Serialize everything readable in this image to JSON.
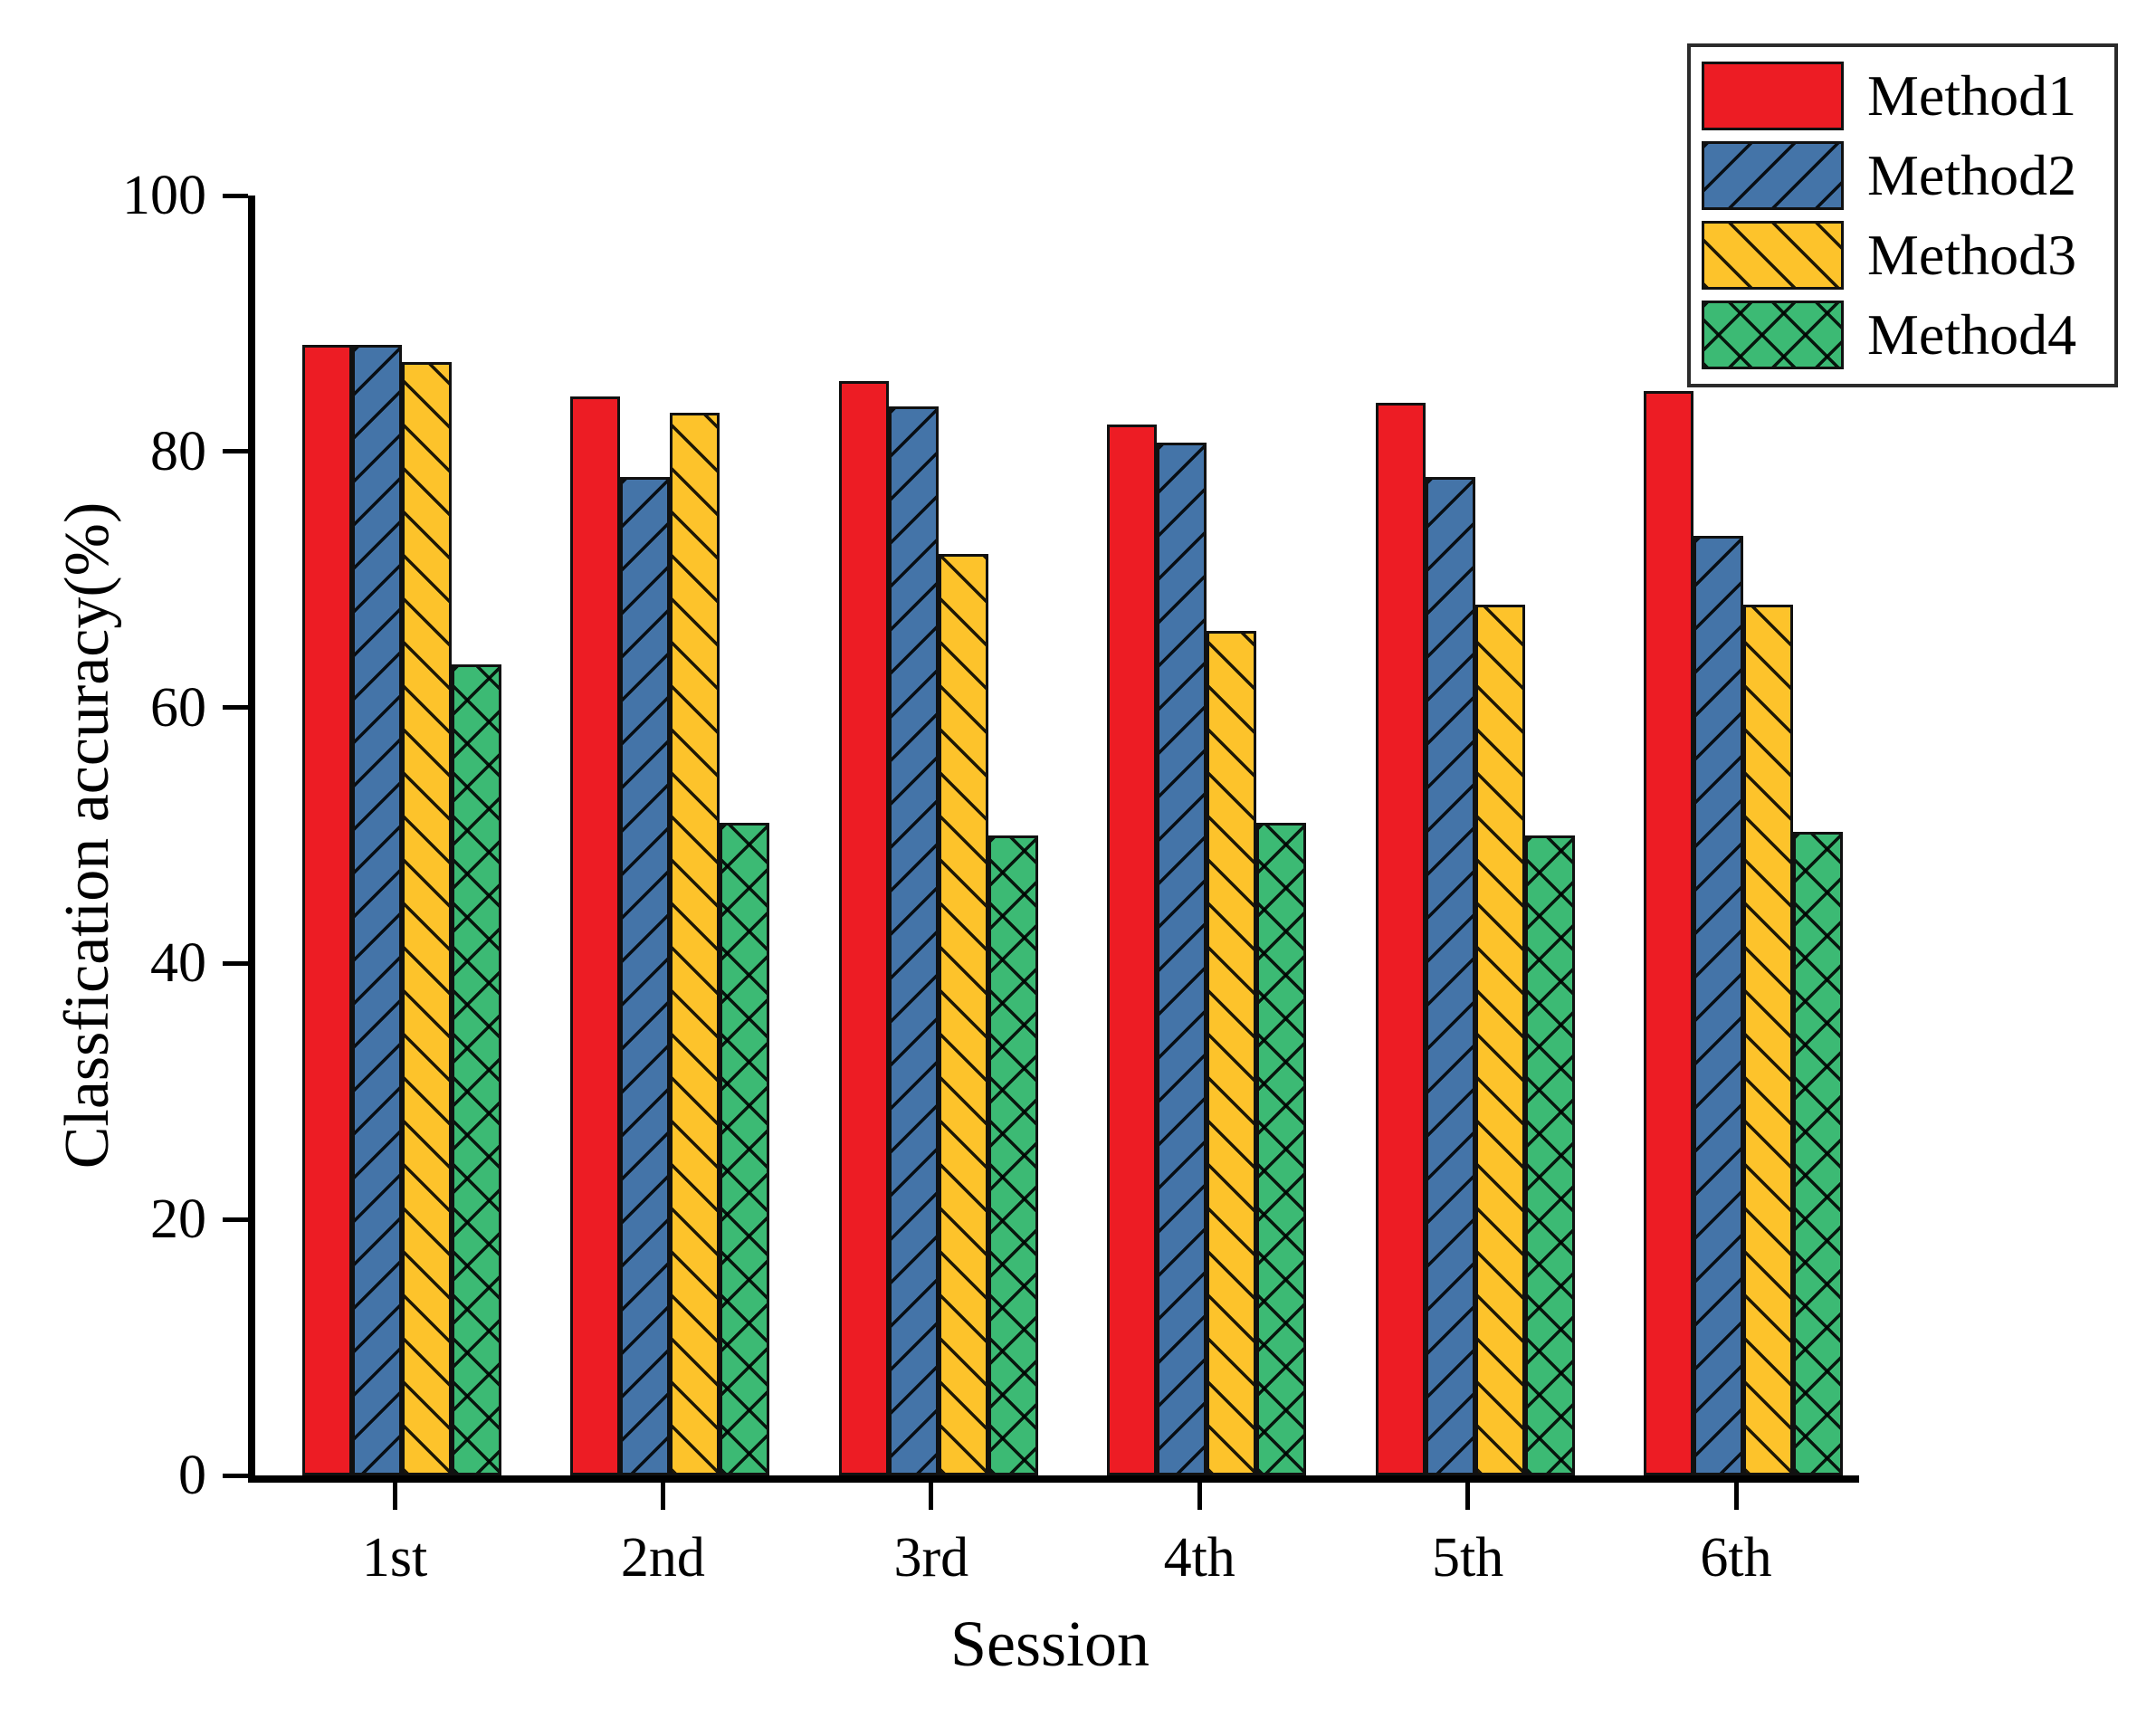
{
  "chart_data": {
    "type": "bar",
    "title": "",
    "xlabel": "Session",
    "ylabel": "Classfication accuracy(%)",
    "categories": [
      "1st",
      "2nd",
      "3rd",
      "4th",
      "5th",
      "6th"
    ],
    "series": [
      {
        "name": "Method1",
        "color": "#ED1C24",
        "hatch": "none",
        "values": [
          88.3,
          84.3,
          85.5,
          82.1,
          83.8,
          84.7
        ]
      },
      {
        "name": "Method2",
        "color": "#4474A8",
        "hatch": "forward-diagonal",
        "values": [
          88.3,
          78.0,
          83.5,
          80.7,
          78.0,
          73.4
        ]
      },
      {
        "name": "Method3",
        "color": "#FDC32B",
        "hatch": "backward-diagonal",
        "values": [
          87.0,
          83.0,
          72.0,
          66.0,
          68.0,
          68.0
        ]
      },
      {
        "name": "Method4",
        "color": "#3CBA74",
        "hatch": "crosshatch",
        "values": [
          63.4,
          51.0,
          50.0,
          51.0,
          50.0,
          50.3
        ]
      }
    ],
    "ylim": [
      0,
      100
    ],
    "yticks": [
      0,
      20,
      40,
      60,
      80,
      100
    ],
    "grid": false,
    "legend_position": "top-right",
    "axis_color": "#000000"
  }
}
